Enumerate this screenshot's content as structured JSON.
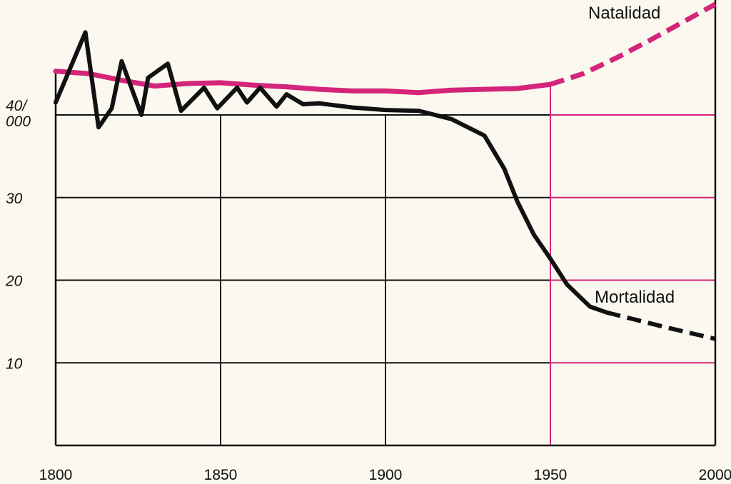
{
  "chart_data": {
    "type": "line",
    "title": "",
    "xlabel": "",
    "ylabel": "",
    "xlim": [
      1800,
      2000
    ],
    "ylim": [
      0,
      45
    ],
    "grid": true,
    "x_ticks": [
      {
        "value": 1800,
        "label": "1800"
      },
      {
        "value": 1850,
        "label": "1850"
      },
      {
        "value": 1900,
        "label": "1900"
      },
      {
        "value": 1950,
        "label": "1950"
      },
      {
        "value": 2000,
        "label": "2000"
      }
    ],
    "y_ticks": [
      {
        "value": 40,
        "label": "40/\n000"
      },
      {
        "value": 30,
        "label": "30"
      },
      {
        "value": 20,
        "label": "20"
      },
      {
        "value": 10,
        "label": "10"
      }
    ],
    "series": [
      {
        "name": "Natalidad",
        "color": "#d4257a",
        "points": [
          [
            1800,
            45.3
          ],
          [
            1810,
            45.0
          ],
          [
            1820,
            44.2
          ],
          [
            1830,
            43.5
          ],
          [
            1840,
            43.8
          ],
          [
            1850,
            43.9
          ],
          [
            1860,
            43.6
          ],
          [
            1870,
            43.4
          ],
          [
            1880,
            43.1
          ],
          [
            1890,
            42.9
          ],
          [
            1900,
            42.9
          ],
          [
            1910,
            42.7
          ],
          [
            1920,
            43.0
          ],
          [
            1930,
            43.1
          ],
          [
            1940,
            43.2
          ],
          [
            1950,
            43.7
          ]
        ],
        "projection": [
          [
            1950,
            43.7
          ],
          [
            1960,
            45.0
          ],
          [
            1970,
            46.9
          ],
          [
            1980,
            49.0
          ],
          [
            1990,
            51.2
          ],
          [
            2000,
            53.4
          ]
        ]
      },
      {
        "name": "Mortalidad",
        "color": "#111111",
        "points": [
          [
            1800,
            41.5
          ],
          [
            1809,
            50.0
          ],
          [
            1813,
            38.5
          ],
          [
            1817,
            40.8
          ],
          [
            1820,
            46.5
          ],
          [
            1826,
            40.0
          ],
          [
            1828,
            44.5
          ],
          [
            1834,
            46.2
          ],
          [
            1838,
            40.5
          ],
          [
            1845,
            43.3
          ],
          [
            1849,
            40.8
          ],
          [
            1855,
            43.3
          ],
          [
            1858,
            41.5
          ],
          [
            1862,
            43.3
          ],
          [
            1867,
            41.0
          ],
          [
            1870,
            42.5
          ],
          [
            1875,
            41.3
          ],
          [
            1880,
            41.4
          ],
          [
            1890,
            40.9
          ],
          [
            1900,
            40.6
          ],
          [
            1910,
            40.5
          ],
          [
            1920,
            39.5
          ],
          [
            1930,
            37.5
          ],
          [
            1936,
            33.5
          ],
          [
            1940,
            29.5
          ],
          [
            1945,
            25.5
          ],
          [
            1950,
            22.6
          ],
          [
            1955,
            19.5
          ],
          [
            1962,
            16.8
          ],
          [
            1967,
            16.1
          ]
        ],
        "projection": [
          [
            1967,
            16.1
          ],
          [
            1975,
            15.3
          ],
          [
            1985,
            14.3
          ],
          [
            2000,
            12.9
          ]
        ]
      }
    ],
    "grid_lines": {
      "major_x": [
        1850,
        1900,
        1950
      ],
      "major_y": [
        10,
        20,
        30,
        40
      ]
    }
  }
}
